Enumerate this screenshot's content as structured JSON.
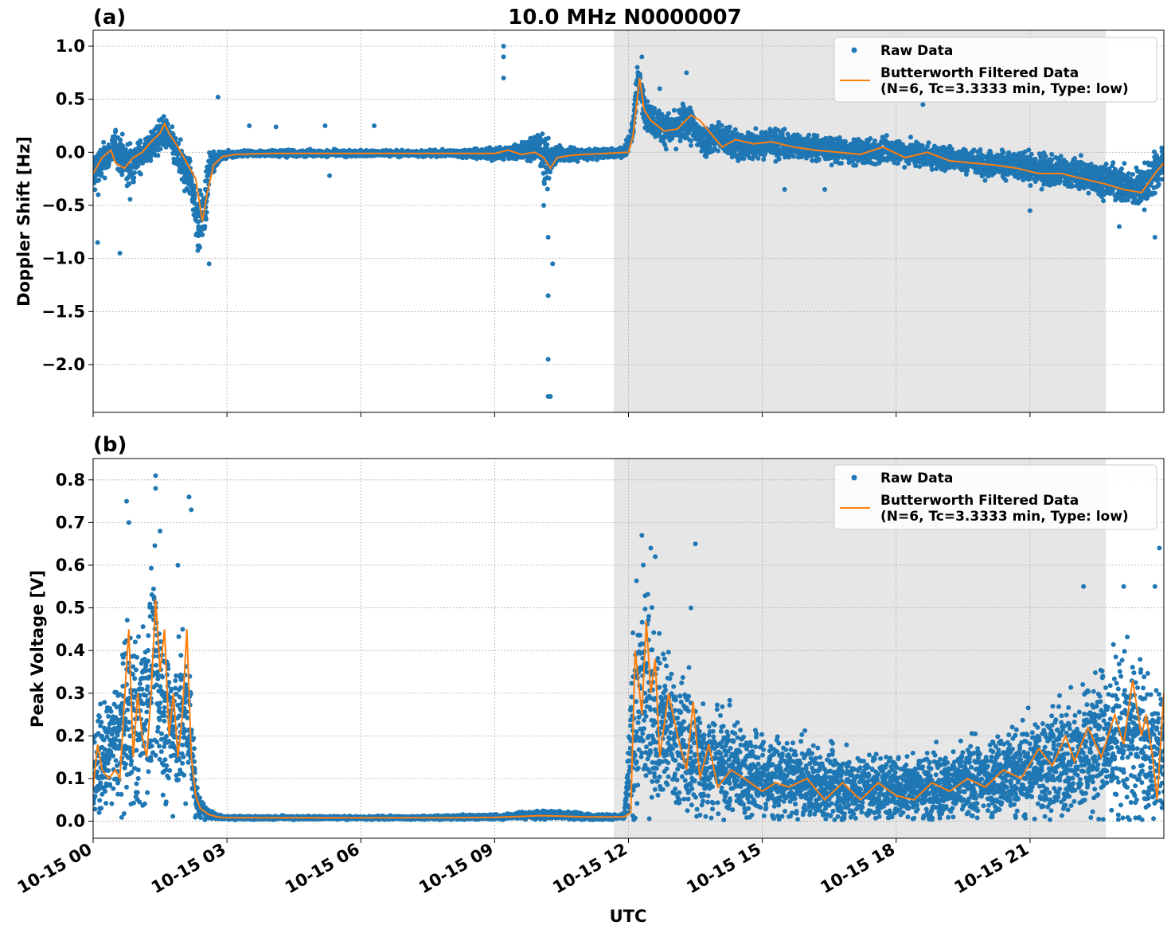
{
  "figure": {
    "title": "10.0 MHz N0000007",
    "xlabel": "UTC",
    "x_ticks": [
      "10-15 00",
      "10-15 03",
      "10-15 06",
      "10-15 09",
      "10-15 12",
      "10-15 15",
      "10-15 18",
      "10-15 21"
    ],
    "shaded_region_hours": [
      11.67,
      22.7
    ],
    "colors": {
      "raw": "#1f77b4",
      "filtered": "#ff7f0e",
      "shade": "#e6e6e6",
      "grid": "#b0b0b0"
    }
  },
  "legend": {
    "raw_label": "Raw Data",
    "filtered_line1": "Butterworth Filtered Data",
    "filtered_line2": "(N=6, Tc=3.3333 min, Type: low)"
  },
  "chart_data": [
    {
      "type": "scatter",
      "panel_label": "(a)",
      "ylabel": "Doppler Shift [Hz]",
      "xlim_hours": [
        0,
        24
      ],
      "ylim": [
        -2.45,
        1.15
      ],
      "y_ticks": [
        1.0,
        0.5,
        0.0,
        -0.5,
        -1.0,
        -1.5,
        -2.0
      ],
      "y_tick_labels": [
        "1.0",
        "0.5",
        "0.0",
        "−0.5",
        "−1.0",
        "−1.5",
        "−2.0"
      ],
      "series": [
        {
          "name": "Raw Data",
          "x_hours": [
            0,
            0.3,
            0.5,
            0.8,
            1.0,
            1.3,
            1.6,
            1.8,
            2.0,
            2.2,
            2.35,
            2.5,
            2.6,
            2.8,
            3.0,
            3.5,
            4.0,
            5.0,
            6.0,
            7.0,
            8.0,
            9.0,
            9.5,
            10.0,
            10.2,
            10.3,
            10.6,
            11.0,
            11.5,
            11.9,
            12.1,
            12.2,
            12.4,
            12.7,
            13.0,
            13.3,
            13.7,
            14.0,
            14.5,
            15.0,
            16.0,
            17.0,
            18.0,
            19.0,
            20.0,
            21.0,
            22.0,
            22.5,
            23.0,
            23.5,
            24.0
          ],
          "y_center": [
            -0.2,
            -0.05,
            0.05,
            -0.15,
            -0.05,
            0.05,
            0.2,
            0.05,
            -0.15,
            -0.25,
            -0.7,
            -0.55,
            -0.15,
            -0.05,
            -0.02,
            -0.01,
            -0.01,
            -0.01,
            -0.01,
            -0.01,
            -0.01,
            -0.01,
            0.0,
            0.05,
            -0.15,
            0.0,
            -0.03,
            -0.02,
            -0.01,
            0.0,
            0.2,
            0.7,
            0.35,
            0.25,
            0.2,
            0.3,
            0.1,
            0.15,
            0.05,
            0.1,
            0.05,
            0.0,
            0.02,
            -0.05,
            -0.1,
            -0.15,
            -0.2,
            -0.25,
            -0.3,
            -0.35,
            -0.1
          ],
          "y_spread": [
            0.25,
            0.15,
            0.15,
            0.25,
            0.15,
            0.15,
            0.15,
            0.15,
            0.2,
            0.2,
            0.3,
            0.25,
            0.2,
            0.04,
            0.03,
            0.03,
            0.03,
            0.03,
            0.03,
            0.03,
            0.03,
            0.06,
            0.06,
            0.15,
            0.3,
            0.1,
            0.08,
            0.05,
            0.05,
            0.05,
            0.1,
            0.15,
            0.15,
            0.15,
            0.15,
            0.2,
            0.15,
            0.15,
            0.15,
            0.15,
            0.12,
            0.12,
            0.12,
            0.12,
            0.12,
            0.15,
            0.15,
            0.15,
            0.18,
            0.2,
            0.2
          ],
          "outliers": [
            [
              0.1,
              -0.85
            ],
            [
              0.6,
              -0.95
            ],
            [
              1.2,
              0.0
            ],
            [
              2.6,
              -1.05
            ],
            [
              2.8,
              0.52
            ],
            [
              3.5,
              0.25
            ],
            [
              4.1,
              0.24
            ],
            [
              5.2,
              0.25
            ],
            [
              5.3,
              -0.22
            ],
            [
              6.3,
              0.25
            ],
            [
              9.2,
              1.0
            ],
            [
              9.2,
              0.9
            ],
            [
              9.2,
              0.7
            ],
            [
              10.2,
              -1.35
            ],
            [
              10.2,
              -1.95
            ],
            [
              10.2,
              -2.3
            ],
            [
              10.25,
              -2.3
            ],
            [
              10.3,
              -1.05
            ],
            [
              10.1,
              -0.5
            ],
            [
              10.2,
              -0.8
            ],
            [
              12.3,
              0.9
            ],
            [
              12.7,
              0.6
            ],
            [
              13.3,
              0.75
            ],
            [
              18.6,
              0.45
            ],
            [
              15.5,
              -0.35
            ],
            [
              16.4,
              -0.35
            ],
            [
              21.0,
              -0.55
            ],
            [
              23.0,
              -0.7
            ],
            [
              23.8,
              -0.8
            ]
          ]
        },
        {
          "name": "Butterworth Filtered Data",
          "x_hours": [
            0,
            0.2,
            0.4,
            0.5,
            0.7,
            0.9,
            1.1,
            1.3,
            1.5,
            1.6,
            1.7,
            1.9,
            2.1,
            2.3,
            2.45,
            2.55,
            2.7,
            2.9,
            3.2,
            4.0,
            5.0,
            6.0,
            7.0,
            8.0,
            9.0,
            9.3,
            9.6,
            9.9,
            10.1,
            10.25,
            10.4,
            10.7,
            11.0,
            11.5,
            12.0,
            12.1,
            12.25,
            12.35,
            12.5,
            12.8,
            13.1,
            13.4,
            13.6,
            13.8,
            14.1,
            14.4,
            14.8,
            15.2,
            15.7,
            16.2,
            16.7,
            17.2,
            17.7,
            18.2,
            18.7,
            19.2,
            19.7,
            20.2,
            20.7,
            21.2,
            21.7,
            22.2,
            22.7,
            23.1,
            23.5,
            23.8,
            24.0
          ],
          "values": [
            -0.2,
            -0.05,
            0.02,
            -0.1,
            -0.15,
            -0.05,
            0.0,
            0.1,
            0.18,
            0.27,
            0.18,
            0.05,
            -0.1,
            -0.25,
            -0.65,
            -0.4,
            -0.12,
            -0.04,
            -0.02,
            -0.01,
            -0.01,
            -0.01,
            -0.01,
            -0.01,
            -0.01,
            0.02,
            -0.02,
            0.0,
            -0.05,
            -0.15,
            -0.05,
            -0.03,
            -0.02,
            -0.01,
            0.0,
            0.15,
            0.7,
            0.4,
            0.3,
            0.2,
            0.22,
            0.35,
            0.3,
            0.2,
            0.05,
            0.12,
            0.08,
            0.1,
            0.05,
            0.02,
            0.0,
            -0.02,
            0.05,
            -0.05,
            0.0,
            -0.08,
            -0.1,
            -0.12,
            -0.15,
            -0.2,
            -0.2,
            -0.25,
            -0.3,
            -0.35,
            -0.38,
            -0.2,
            -0.1
          ]
        }
      ]
    },
    {
      "type": "scatter",
      "panel_label": "(b)",
      "ylabel": "Peak Voltage [V]",
      "xlim_hours": [
        0,
        24
      ],
      "ylim": [
        -0.04,
        0.85
      ],
      "y_ticks": [
        0.8,
        0.7,
        0.6,
        0.5,
        0.4,
        0.3,
        0.2,
        0.1,
        0.0
      ],
      "y_tick_labels": [
        "0.8",
        "0.7",
        "0.6",
        "0.5",
        "0.4",
        "0.3",
        "0.2",
        "0.1",
        "0.0"
      ],
      "series": [
        {
          "name": "Raw Data",
          "x_hours": [
            0,
            0.3,
            0.6,
            0.8,
            1.0,
            1.2,
            1.4,
            1.6,
            1.8,
            2.0,
            2.2,
            2.3,
            2.5,
            2.8,
            3.0,
            5.0,
            7.0,
            9.0,
            10.0,
            10.5,
            11.0,
            11.9,
            12.1,
            12.3,
            12.6,
            13.0,
            13.5,
            14.0,
            14.5,
            15.0,
            16.0,
            17.0,
            18.0,
            19.0,
            20.0,
            21.0,
            22.0,
            22.5,
            23.0,
            23.5,
            23.8,
            24.0
          ],
          "y_center": [
            0.12,
            0.15,
            0.2,
            0.25,
            0.22,
            0.3,
            0.35,
            0.25,
            0.2,
            0.25,
            0.2,
            0.05,
            0.02,
            0.01,
            0.008,
            0.008,
            0.008,
            0.01,
            0.015,
            0.015,
            0.01,
            0.01,
            0.2,
            0.3,
            0.25,
            0.2,
            0.15,
            0.14,
            0.12,
            0.1,
            0.09,
            0.08,
            0.08,
            0.08,
            0.1,
            0.12,
            0.15,
            0.18,
            0.2,
            0.18,
            0.15,
            0.2
          ],
          "y_spread": [
            0.1,
            0.12,
            0.15,
            0.25,
            0.2,
            0.25,
            0.25,
            0.2,
            0.18,
            0.2,
            0.15,
            0.04,
            0.015,
            0.006,
            0.004,
            0.004,
            0.004,
            0.006,
            0.01,
            0.01,
            0.008,
            0.006,
            0.2,
            0.3,
            0.2,
            0.18,
            0.15,
            0.12,
            0.12,
            0.1,
            0.09,
            0.08,
            0.08,
            0.08,
            0.1,
            0.12,
            0.15,
            0.18,
            0.2,
            0.2,
            0.15,
            0.2
          ],
          "outliers": [
            [
              0.75,
              0.75
            ],
            [
              0.8,
              0.7
            ],
            [
              1.4,
              0.81
            ],
            [
              1.4,
              0.78
            ],
            [
              1.5,
              0.68
            ],
            [
              1.9,
              0.6
            ],
            [
              2.15,
              0.76
            ],
            [
              2.2,
              0.73
            ],
            [
              12.3,
              0.67
            ],
            [
              12.5,
              0.64
            ],
            [
              12.6,
              0.62
            ],
            [
              13.5,
              0.65
            ],
            [
              13.4,
              0.5
            ],
            [
              22.2,
              0.55
            ],
            [
              23.1,
              0.55
            ],
            [
              23.9,
              0.64
            ],
            [
              23.8,
              0.55
            ]
          ]
        },
        {
          "name": "Butterworth Filtered Data",
          "x_hours": [
            0,
            0.1,
            0.2,
            0.35,
            0.5,
            0.6,
            0.7,
            0.8,
            0.9,
            1.0,
            1.1,
            1.2,
            1.3,
            1.4,
            1.5,
            1.6,
            1.7,
            1.8,
            1.9,
            2.0,
            2.1,
            2.2,
            2.3,
            2.4,
            2.6,
            2.8,
            3.0,
            4.0,
            5.0,
            6.0,
            7.0,
            8.0,
            9.0,
            9.5,
            10.0,
            10.5,
            11.0,
            11.5,
            11.9,
            12.05,
            12.15,
            12.3,
            12.4,
            12.5,
            12.6,
            12.7,
            12.9,
            13.1,
            13.3,
            13.45,
            13.6,
            13.8,
            14.0,
            14.3,
            14.6,
            15.0,
            15.3,
            15.6,
            16.0,
            16.4,
            16.8,
            17.2,
            17.6,
            18.0,
            18.4,
            18.8,
            19.2,
            19.6,
            20.0,
            20.4,
            20.8,
            21.2,
            21.5,
            21.8,
            22.0,
            22.3,
            22.6,
            22.9,
            23.1,
            23.3,
            23.5,
            23.6,
            23.75,
            23.85,
            24.0
          ],
          "values": [
            0.08,
            0.18,
            0.12,
            0.1,
            0.12,
            0.1,
            0.28,
            0.45,
            0.15,
            0.3,
            0.2,
            0.15,
            0.3,
            0.52,
            0.35,
            0.45,
            0.2,
            0.3,
            0.15,
            0.25,
            0.45,
            0.15,
            0.06,
            0.03,
            0.015,
            0.01,
            0.008,
            0.008,
            0.008,
            0.008,
            0.008,
            0.008,
            0.009,
            0.011,
            0.013,
            0.012,
            0.01,
            0.01,
            0.01,
            0.02,
            0.4,
            0.25,
            0.47,
            0.3,
            0.38,
            0.15,
            0.3,
            0.2,
            0.12,
            0.28,
            0.1,
            0.18,
            0.08,
            0.12,
            0.1,
            0.07,
            0.09,
            0.08,
            0.1,
            0.05,
            0.09,
            0.05,
            0.09,
            0.06,
            0.05,
            0.09,
            0.07,
            0.1,
            0.08,
            0.12,
            0.1,
            0.17,
            0.13,
            0.2,
            0.14,
            0.22,
            0.15,
            0.25,
            0.18,
            0.33,
            0.2,
            0.25,
            0.15,
            0.05,
            0.3
          ]
        }
      ]
    }
  ]
}
